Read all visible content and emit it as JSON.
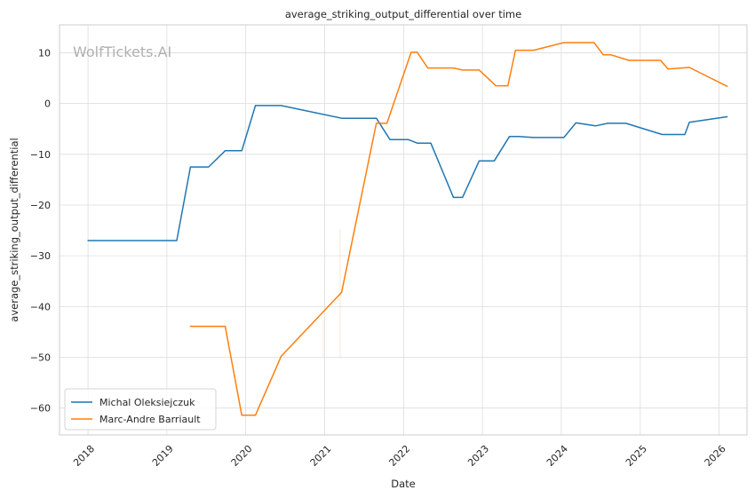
{
  "watermark": "WolfTickets.AI",
  "chart_data": {
    "type": "line",
    "title": "average_striking_output_differential over time",
    "xlabel": "Date",
    "ylabel": "average_striking_output_differential",
    "x_ticks": [
      "2018",
      "2019",
      "2020",
      "2021",
      "2022",
      "2023",
      "2024",
      "2025",
      "2026"
    ],
    "y_ticks": [
      10,
      0,
      -10,
      -20,
      -30,
      -40,
      -50,
      -60
    ],
    "xlim": [
      "2017-08-22",
      "2026-05-10"
    ],
    "ylim": [
      -65.3,
      15.5
    ],
    "grid": true,
    "legend_position": "lower-left",
    "series": [
      {
        "name": "Michal Oleksiejczuk",
        "color": "#1f77b4",
        "points": [
          [
            "2018-01-01",
            -27.0
          ],
          [
            "2019-02-16",
            -27.0
          ],
          [
            "2019-04-20",
            -12.5
          ],
          [
            "2019-07-13",
            -12.5
          ],
          [
            "2019-09-28",
            -9.3
          ],
          [
            "2019-12-14",
            -9.3
          ],
          [
            "2020-02-15",
            -0.4
          ],
          [
            "2020-06-13",
            -0.4
          ],
          [
            "2021-03-20",
            -2.9
          ],
          [
            "2021-08-28",
            -2.9
          ],
          [
            "2021-10-30",
            -7.1
          ],
          [
            "2022-01-22",
            -7.1
          ],
          [
            "2022-03-05",
            -7.8
          ],
          [
            "2022-05-07",
            -7.8
          ],
          [
            "2022-08-20",
            -18.5
          ],
          [
            "2022-10-01",
            -18.5
          ],
          [
            "2022-12-17",
            -11.3
          ],
          [
            "2023-02-25",
            -11.3
          ],
          [
            "2023-05-06",
            -6.5
          ],
          [
            "2023-06-17",
            -6.5
          ],
          [
            "2023-08-26",
            -6.7
          ],
          [
            "2024-01-13",
            -6.7
          ],
          [
            "2024-03-09",
            -3.8
          ],
          [
            "2024-06-08",
            -4.4
          ],
          [
            "2024-08-03",
            -3.9
          ],
          [
            "2024-10-26",
            -3.9
          ],
          [
            "2025-04-12",
            -6.1
          ],
          [
            "2025-07-26",
            -6.1
          ],
          [
            "2025-08-16",
            -3.7
          ],
          [
            "2026-02-07",
            -2.6
          ]
        ]
      },
      {
        "name": "Marc-Andre Barriault",
        "color": "#ff7f0e",
        "points": [
          [
            "2019-04-20",
            -43.9
          ],
          [
            "2019-09-28",
            -43.9
          ],
          [
            "2019-12-14",
            -61.4
          ],
          [
            "2020-02-15",
            -61.4
          ],
          [
            "2020-06-13",
            -49.8
          ],
          [
            "2021-03-20",
            -37.2
          ],
          [
            "2021-08-28",
            -3.9
          ],
          [
            "2021-10-16",
            -3.9
          ],
          [
            "2022-02-05",
            10.1
          ],
          [
            "2022-03-05",
            10.1
          ],
          [
            "2022-04-23",
            7.0
          ],
          [
            "2022-08-20",
            7.0
          ],
          [
            "2022-10-01",
            6.6
          ],
          [
            "2022-12-17",
            6.6
          ],
          [
            "2023-03-04",
            3.5
          ],
          [
            "2023-04-29",
            3.5
          ],
          [
            "2023-06-03",
            10.5
          ],
          [
            "2023-08-26",
            10.5
          ],
          [
            "2024-01-13",
            12.0
          ],
          [
            "2024-06-01",
            12.0
          ],
          [
            "2024-07-13",
            9.6
          ],
          [
            "2024-08-17",
            9.6
          ],
          [
            "2024-11-09",
            8.5
          ],
          [
            "2025-04-05",
            8.5
          ],
          [
            "2025-05-10",
            6.8
          ],
          [
            "2025-08-16",
            7.1
          ],
          [
            "2026-02-07",
            3.4
          ]
        ]
      }
    ]
  }
}
